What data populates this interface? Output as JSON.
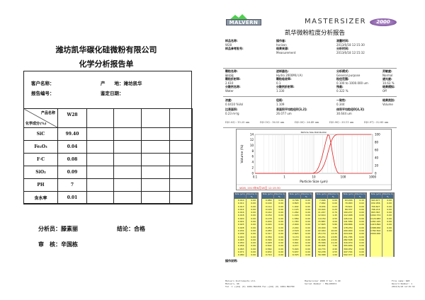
{
  "left_page": {
    "company": "潍坊凯华碳化硅微粉有限公司",
    "title": "化学分析报告单",
    "customer_label": "客户名称：",
    "origin_label": "产　　地：",
    "origin_value": "潍坊凯华",
    "report_no_label": "报告编号：",
    "date_label": "鉴定日期：",
    "header_product": "产品名称",
    "header_component": "化学成分(%)",
    "product": "W28",
    "rows": [
      {
        "name": "SiC",
        "value": "99.40"
      },
      {
        "name": "Fe₂O₃",
        "value": "0.04"
      },
      {
        "name": "F·C",
        "value": "0.08"
      },
      {
        "name": "SiO₂",
        "value": "0.09"
      },
      {
        "name": "PH",
        "value": "7"
      },
      {
        "name": "含水率",
        "value": "0.01"
      }
    ],
    "analyst": "分析员：滕素丽",
    "conclusion": "结论：合格",
    "reviewer": "审　核：辛国栋"
  },
  "right_page": {
    "logo_text": "MALVERN",
    "brand": "MASTERSIZER",
    "brand_badge": "2000",
    "title": "凯华微粉粒度分析报告",
    "fields": [
      {
        "label": "样品名称:",
        "value": "W28"
      },
      {
        "label": "操作者:",
        "value": "horizon"
      },
      {
        "label": "测量时间:",
        "value": "2013/6/18 12:15:30"
      },
      {
        "label": "样品参考批号:",
        "value": ""
      },
      {
        "label": "结果来源:",
        "value": "Measurement"
      },
      {
        "label": "分析时间:",
        "value": "2013/6/18 12:15:32"
      },
      {
        "label": "颗粒名称:",
        "value": "碳化硅"
      },
      {
        "label": "进样器名:",
        "value": "Hydro 2000MU (A)"
      },
      {
        "label": "分析模式:",
        "value": "General purpose"
      },
      {
        "label": "灵敏度:",
        "value": "Normal"
      },
      {
        "label": "颗粒折射率:",
        "value": "2.610"
      },
      {
        "label": "颗粒吸收率:",
        "value": "0.1"
      },
      {
        "label": "粒径范围:",
        "value": "0.100   to   1000.000   um"
      },
      {
        "label": "遮光度:",
        "value": "10.63   %"
      },
      {
        "label": "分散剂名称:",
        "value": "Water"
      },
      {
        "label": "分散剂折射率:",
        "value": "1.330"
      },
      {
        "label": "残差:",
        "value": "0.322   %"
      },
      {
        "label": "结果模拟:",
        "value": "Off"
      },
      {
        "label": "浓度:",
        "value": "0.0410   %Vol"
      },
      {
        "label": "径距:",
        "value": "1.109"
      },
      {
        "label": "一致性:",
        "value": "0.344"
      },
      {
        "label": "结果类别:",
        "value": "Volume"
      },
      {
        "label": "比表面积:",
        "value": "0.23   m²/g"
      },
      {
        "label": "表面积平均粒径D[3,2]:",
        "value": "26.077   um"
      },
      {
        "label": "体积平均粒径D[4,3]:",
        "value": "30.644   um"
      }
    ],
    "percentiles": [
      "D(0.03) : 15.25 um",
      "D(0.10) : 16.53 um",
      "D(0.50) : 26.49 um",
      "D(0.90) : 35.11 um",
      "D(0.97) : 52.85 um"
    ],
    "table_headers": [
      "Size (μm)",
      "Volume In %"
    ],
    "notes_label": "操作说明:",
    "footer": {
      "left": [
        "Malvern Instruments Ltd.",
        "Malvern, UK",
        "Tel := +[44] (0) 1684-892456 Fax +[44] (0) 1684-892789"
      ],
      "center": [
        "Mastersizer 2000 E Ver. 5.60",
        "Serial Number : MAL100672"
      ],
      "right": [
        "File name: W28",
        "Record Number: 1",
        "2013/6/18 12:15:32"
      ]
    }
  },
  "chart_data": {
    "type": "line",
    "title": "Particle Size Distribution",
    "xlabel": "Particle Size (μm)",
    "ylabel": "Volume (%)",
    "x_scale": "log",
    "xlim": [
      0.1,
      1000
    ],
    "ylim": [
      0,
      14
    ],
    "y2lim": [
      0,
      100
    ],
    "x_ticks": [
      "0.1",
      "1",
      "10",
      "100",
      "1000"
    ],
    "y_ticks": [
      "0",
      "2",
      "4",
      "6",
      "8",
      "10",
      "12",
      "14"
    ],
    "y2_ticks": [
      "0",
      "20",
      "40",
      "60",
      "80",
      "100"
    ],
    "legend": "-W28, 2013年6月18日 12:15:30",
    "legend_position": "bottom",
    "grid": true,
    "color": "#e02020",
    "sizes": [
      0.01,
      0.011,
      0.013,
      0.014,
      0.016,
      0.018,
      0.02,
      0.022,
      0.025,
      0.028,
      0.032,
      0.036,
      0.04,
      0.045,
      0.05,
      0.056,
      0.063,
      0.071,
      0.08,
      0.089,
      0.1,
      0.112,
      0.126,
      0.142,
      0.159,
      0.178,
      0.2,
      0.224,
      0.252,
      0.283,
      0.317,
      0.356,
      0.399,
      0.448,
      0.502,
      0.564,
      0.632,
      0.71,
      0.796,
      0.893,
      1.002,
      1.125,
      1.262,
      1.416,
      1.589,
      1.783,
      2.0,
      2.244,
      2.518,
      2.825,
      3.17,
      3.557,
      3.991,
      4.477,
      5.024,
      5.637,
      6.325,
      7.096,
      7.962,
      8.934,
      10.024,
      11.247,
      12.619,
      14.159,
      15.887,
      17.825,
      20.0,
      22.44,
      25.179,
      28.251,
      31.698,
      35.566,
      39.905,
      44.774,
      50.238,
      56.368,
      63.246,
      70.963,
      79.621,
      89.337,
      100.237,
      112.468,
      126.191,
      141.589,
      158.866,
      178.25,
      200.0,
      224.404,
      251.785,
      282.508,
      316.979,
      355.656,
      399.052,
      447.744,
      502.377,
      563.677,
      632.456,
      709.627,
      796.214,
      893.367,
      1002.374,
      1124.683,
      1261.915,
      1415.892,
      1588.656,
      1782.502,
      2000.0
    ],
    "volume_in": {
      "8.934": 0.03,
      "10.024": 0.25,
      "11.247": 0.7,
      "12.619": 1.45,
      "14.159": 2.55,
      "15.887": 4.0,
      "17.825": 5.8,
      "20.000": 7.85,
      "22.440": 10.0,
      "25.179": 12.2,
      "28.251": 13.85,
      "31.698": 13.6,
      "35.566": 11.2,
      "39.905": 7.9,
      "44.774": 4.9,
      "50.238": 2.55,
      "56.368": 1.0,
      "63.246": 0.15,
      "70.963": 0.02
    }
  }
}
